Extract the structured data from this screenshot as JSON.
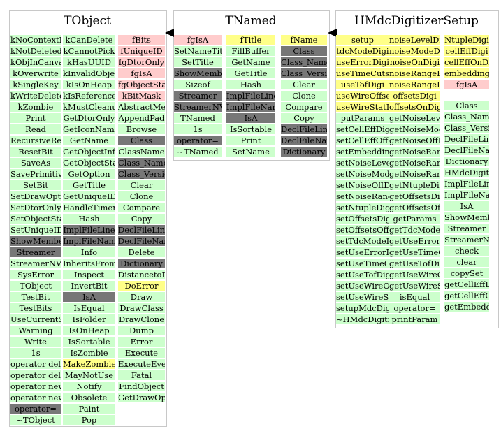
{
  "classes": [
    {
      "name": "TObject",
      "columns": [
        [
          "kNoContextMenu",
          "kNotDeleted",
          "kObjInCanvas",
          "kOverwrite",
          "kSingleKey",
          "kWriteDelete",
          "kZombie",
          "Print",
          "Read",
          "RecursiveRemove",
          "ResetBit",
          "SaveAs",
          "SavePrimitive",
          "SetBit",
          "SetDrawOption",
          "SetDtorOnly",
          "SetObjectStat",
          "SetUniqueID",
          "ShowMembers",
          "Streamer",
          "StreamerNVirtual",
          "SysError",
          "TObject",
          "TestBit",
          "TestBits",
          "UseCurrentStyle",
          "Warning",
          "Write",
          "1s",
          "operator delete",
          "operator delete[]",
          "operator new",
          "operator new[]",
          "operator=",
          "~TObject"
        ],
        [
          "kCanDelete",
          "kCannotPick",
          "kHasUUID",
          "kInvalidObject",
          "kIsOnHeap",
          "kIsReferenced",
          "kMustCleanup",
          "GetDtorOnly",
          "GetIconName",
          "GetName",
          "GetObjectInfo",
          "GetObjectStat",
          "GetOption",
          "GetTitle",
          "GetUniqueID",
          "HandleTimer",
          "Hash",
          "ImplFileLine",
          "ImplFileName",
          "Info",
          "InheritsFrom",
          "Inspect",
          "InvertBit",
          "IsA",
          "IsEqual",
          "IsFolder",
          "IsOnHeap",
          "IsSortable",
          "IsZombie",
          "MakeZombie",
          "MayNotUse",
          "Notify",
          "Obsolete",
          "Paint",
          "Pop"
        ],
        [
          "fBits",
          "fUniqueID",
          "fgDtorOnly",
          "fgIsA",
          "fgObjectStat",
          "kBitMask",
          "AbstractMethod",
          "AppendPad",
          "Browse",
          "Class",
          "ClassName",
          "Class_Name",
          "Class_Version",
          "Clear",
          "Clone",
          "Compare",
          "Copy",
          "DeclFileLine",
          "DeclFileName",
          "Delete",
          "Dictionary",
          "DistancetoPrimitive",
          "DoError",
          "Draw",
          "DrawClass",
          "DrawClone",
          "Dump",
          "Error",
          "Execute",
          "ExecuteEvent",
          "Fatal",
          "FindObject",
          "GetDrawOption"
        ]
      ]
    },
    {
      "name": "TNamed",
      "columns": [
        [
          "fgIsA",
          "SetNameTitle",
          "SetTitle",
          "ShowMembers",
          "Sizeof",
          "Streamer",
          "StreamerNVirtual",
          "TNamed",
          "1s",
          "operator=",
          "~TNamed"
        ],
        [
          "fTitle",
          "FillBuffer",
          "GetName",
          "GetTitle",
          "Hash",
          "ImplFileLine",
          "ImplFileName",
          "IsA",
          "IsSortable",
          "Print",
          "SetName"
        ],
        [
          "fName",
          "Class",
          "Class_Name",
          "Class_Version",
          "Clear",
          "Clone",
          "Compare",
          "Copy",
          "DeclFileLine",
          "DeclFileName",
          "Dictionary"
        ]
      ]
    },
    {
      "name": "HMdcDigitizerSetup",
      "columns": [
        [
          "setup",
          "tdcModeDigi",
          "useErrorDigi",
          "useTimeCutsDigi",
          "useTofDigi",
          "useWireOffsetDigi",
          "useWireStatDigi",
          "putParams",
          "setCellEffDigi",
          "setCellEffOffDigi",
          "setEmbeddingModeDigi",
          "setNoiseLevelDigi",
          "setNoiseModeDigi",
          "setNoiseOffDigi",
          "setNoiseRangeDigi",
          "setNtupleDigi",
          "setOffsetsDigi",
          "setOffsetsOffDigi",
          "setTdcModeDigi",
          "setUseErrorDigi",
          "setUseTimeCutsDigi",
          "setUseTofDigi",
          "setUseWireOffsetDigi",
          "setUseWireStatDigi",
          "setupMdcDigitizer",
          "~HMdcDigitizerSetup"
        ],
        [
          "noiseLevelDigi",
          "noiseModeDigi",
          "noiseOnDigi",
          "noiseRangeHiDigi",
          "noiseRangeLoDigi",
          "offsetsDigi",
          "offsetsOnDigi",
          "getNoiseLevelDigi",
          "getNoiseModeDigi",
          "getNoiseOffDigi",
          "getNoiseRangeDigi",
          "getNoiseRangeHiDigi",
          "getNoiseRangeLoDigi",
          "getNtupleDigi",
          "getOffsetsDigi",
          "getOffsetsOffDigi",
          "getParams",
          "getTdcModeDigi",
          "getUseErrorDigi",
          "getUseTimeCutsDigi",
          "getUseTofDigi",
          "getUseWireOffsetDigi",
          "getUseWireStatDigi",
          "isEqual",
          "operator=",
          "printParam"
        ],
        [
          "NtupleDigi",
          "cellEffDigi",
          "cellEffOnDigi",
          "embeddingModeDigi",
          "fgIsA",
          "Class",
          "Class_Name",
          "Class_Version",
          "DeclFileLine",
          "DeclFileName",
          "Dictionary",
          "HMdcDigitizerSetup",
          "ImplFileLine",
          "ImplFileName",
          "IsA",
          "ShowMembers",
          "Streamer",
          "StreamerNVirtual",
          "check",
          "clear",
          "copySet",
          "getCellEffDigi",
          "getCellEffOffDigi",
          "getEmbeddingModeDigi"
        ]
      ]
    }
  ],
  "colors": {
    "method_public": "#ccffcc",
    "member_private": "#ffcccc",
    "member_protected": "#ffff88",
    "method_inherited_overridden": "#777777"
  }
}
